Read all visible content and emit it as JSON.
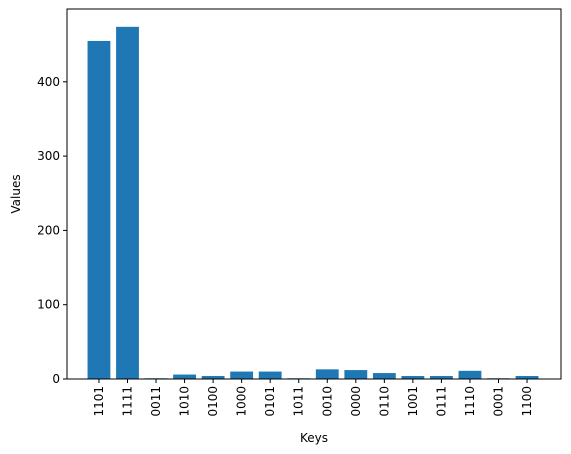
{
  "chart_data": {
    "type": "bar",
    "xlabel": "Keys",
    "ylabel": "Values",
    "categories": [
      "1101",
      "1111",
      "0011",
      "1010",
      "0100",
      "1000",
      "0101",
      "1011",
      "0010",
      "0000",
      "0110",
      "1001",
      "0111",
      "1110",
      "0001",
      "1100"
    ],
    "values": [
      455,
      474,
      1,
      6,
      4,
      10,
      10,
      1,
      13,
      12,
      8,
      4,
      4,
      11,
      1,
      4
    ],
    "color": "#1f77b4",
    "ylim": [
      0,
      498
    ],
    "yticks": [
      0,
      100,
      200,
      300,
      400
    ],
    "grid": false
  }
}
